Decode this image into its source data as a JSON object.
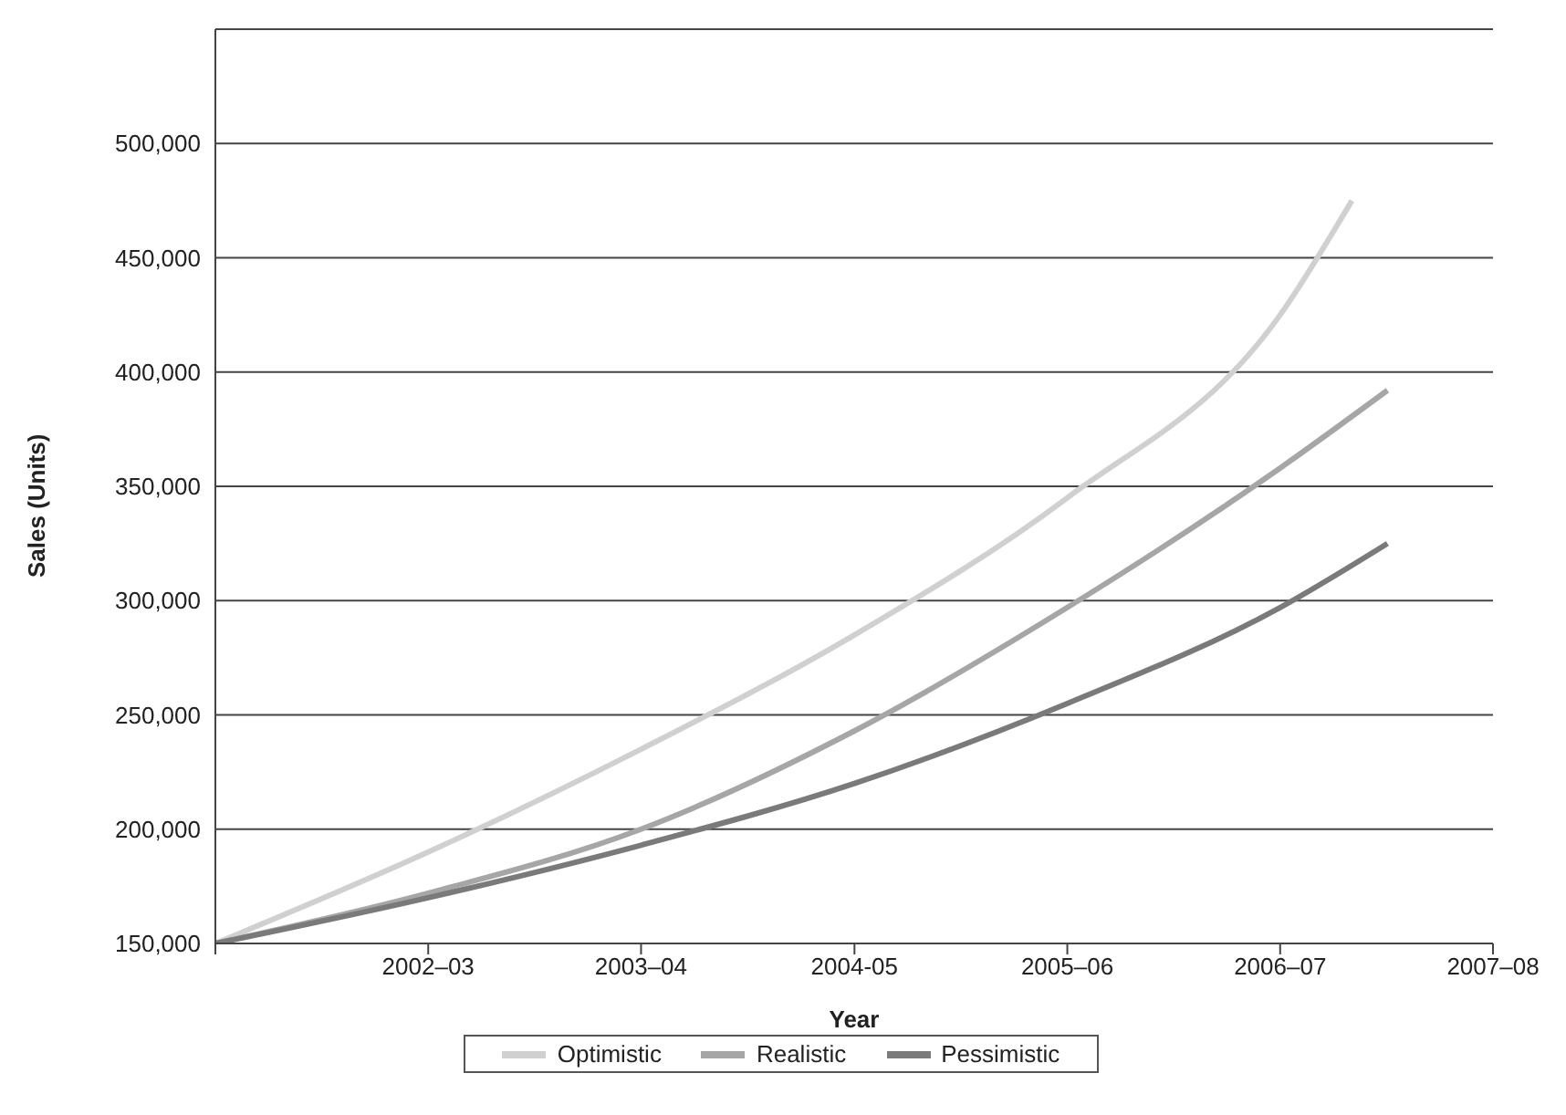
{
  "chart_data": {
    "type": "line",
    "xlabel": "Year",
    "ylabel": "Sales (Units)",
    "xlim": [
      "2001-07",
      "2007-07"
    ],
    "xticks": [
      {
        "value": "2001-07",
        "label": null
      },
      {
        "value": "2002-07",
        "label": "2002–03"
      },
      {
        "value": "2003-07",
        "label": "2003–04"
      },
      {
        "value": "2004-07",
        "label": "2004-05"
      },
      {
        "value": "2005-07",
        "label": "2005–06"
      },
      {
        "value": "2006-07",
        "label": "2006–07"
      },
      {
        "value": "2007-07",
        "label": "2007–08"
      }
    ],
    "ylim": [
      150000,
      550000
    ],
    "yticks": [
      {
        "value": 150000,
        "label": "150,000"
      },
      {
        "value": 200000,
        "label": "200,000"
      },
      {
        "value": 250000,
        "label": "250,000"
      },
      {
        "value": 300000,
        "label": "300,000"
      },
      {
        "value": 350000,
        "label": "350,000"
      },
      {
        "value": 400000,
        "label": "400,000"
      },
      {
        "value": 450000,
        "label": "450,000"
      },
      {
        "value": 500000,
        "label": "500,000"
      },
      {
        "value": 550000,
        "label": null
      }
    ],
    "grid": "y",
    "legend": "bottom",
    "marker": "none",
    "line_style": "solid",
    "series": [
      {
        "name": "Optimistic",
        "color": "#d0d0d0",
        "x": [
          "2001-07",
          "2002-07",
          "2003-07",
          "2004-07",
          "2005-07",
          "2006-07",
          "2006-11"
        ],
        "values": [
          150000,
          190000,
          235000,
          285000,
          345000,
          425000,
          475000
        ]
      },
      {
        "name": "Realistic",
        "color": "#a6a6a6",
        "x": [
          "2001-07",
          "2002-07",
          "2003-07",
          "2004-07",
          "2005-07",
          "2006-07",
          "2007-01"
        ],
        "values": [
          150000,
          172000,
          200000,
          243000,
          297000,
          358000,
          392000
        ]
      },
      {
        "name": "Pessimistic",
        "color": "#7a7a7a",
        "x": [
          "2001-07",
          "2002-07",
          "2003-07",
          "2004-07",
          "2005-07",
          "2006-07",
          "2007-01"
        ],
        "values": [
          150000,
          170000,
          193000,
          220000,
          255000,
          297000,
          325000
        ]
      }
    ]
  }
}
